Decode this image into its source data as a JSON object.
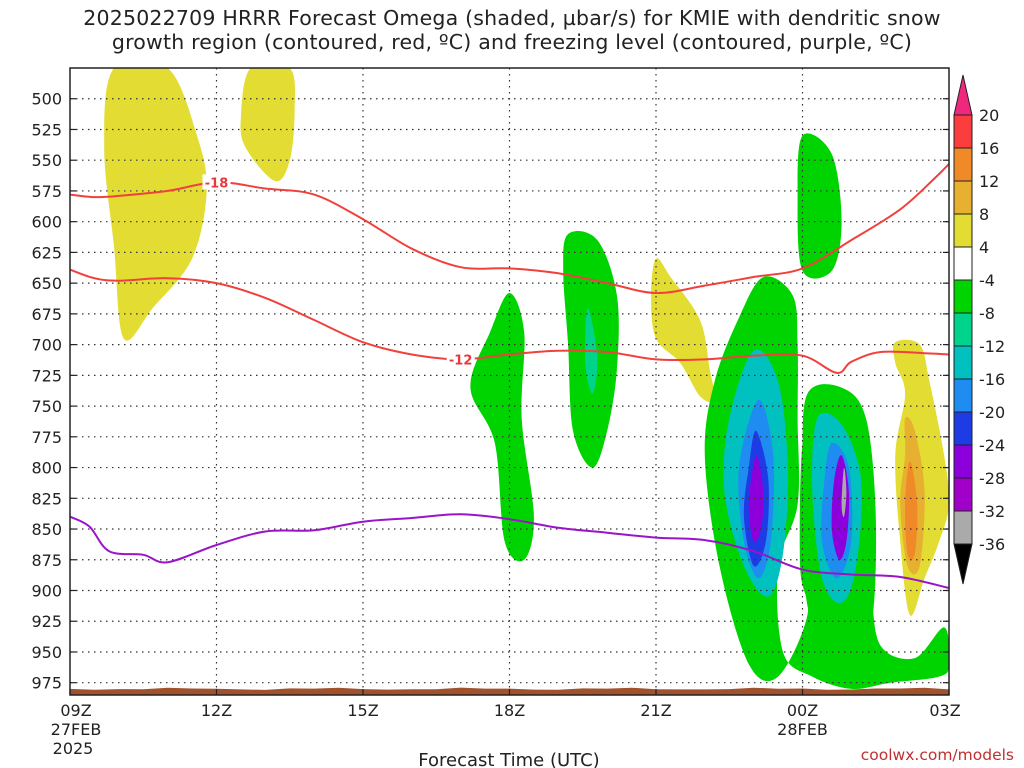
{
  "title": {
    "line1": "2025022709 HRRR Forecast Omega (shaded, µbar/s) for KMIE with dendritic snow",
    "line2": "growth region (contoured, red, ºC) and freezing level (contoured, purple, ºC)"
  },
  "credit": "coolwx.com/models",
  "chart_data": {
    "type": "contour",
    "xlabel": "Forecast Time (UTC)",
    "x_ticks": [
      {
        "hour": 0,
        "label": "09Z",
        "sub1": "27FEB",
        "sub2": "2025"
      },
      {
        "hour": 3,
        "label": "12Z"
      },
      {
        "hour": 6,
        "label": "15Z"
      },
      {
        "hour": 9,
        "label": "18Z"
      },
      {
        "hour": 12,
        "label": "21Z"
      },
      {
        "hour": 15,
        "label": "00Z",
        "sub1": "28FEB"
      },
      {
        "hour": 18,
        "label": "03Z"
      }
    ],
    "xlim": [
      0,
      18
    ],
    "y_ticks": [
      500,
      525,
      550,
      575,
      600,
      625,
      650,
      675,
      700,
      725,
      750,
      775,
      800,
      825,
      850,
      875,
      900,
      925,
      950,
      975
    ],
    "ylim_hpa": [
      475,
      985
    ],
    "colorbar": {
      "top_label": "20",
      "levels": [
        {
          "label": "16",
          "color": "#fc3d3d"
        },
        {
          "label": "12",
          "color": "#f08a28"
        },
        {
          "label": "8",
          "color": "#e7b030"
        },
        {
          "label": "4",
          "color": "#e3dc32"
        },
        {
          "label": "-4",
          "color": "#ffffff"
        },
        {
          "label": "-8",
          "color": "#00d400"
        },
        {
          "label": "-12",
          "color": "#00d38c"
        },
        {
          "label": "-16",
          "color": "#00c0c0"
        },
        {
          "label": "-20",
          "color": "#1e8cf0"
        },
        {
          "label": "-24",
          "color": "#1e3ce6"
        },
        {
          "label": "-28",
          "color": "#8c00dc"
        },
        {
          "label": "-32",
          "color": "#a000c8"
        },
        {
          "label": "-36",
          "color": "#aaaaaa"
        }
      ],
      "top_color": "#f0287d",
      "bottom_color": "#000000"
    },
    "omega_regions": [
      {
        "name": "upward-motion-west",
        "color": "#e3dc32",
        "points": [
          [
            0.9,
            475
          ],
          [
            2.0,
            475
          ],
          [
            2.6,
            530
          ],
          [
            2.8,
            575
          ],
          [
            2.5,
            630
          ],
          [
            1.7,
            670
          ],
          [
            1.1,
            695
          ],
          [
            0.9,
            620
          ],
          [
            0.7,
            540
          ]
        ]
      },
      {
        "name": "upward-motion-upper",
        "color": "#e3dc32",
        "points": [
          [
            3.7,
            475
          ],
          [
            4.5,
            475
          ],
          [
            4.6,
            510
          ],
          [
            4.5,
            550
          ],
          [
            4.2,
            567
          ],
          [
            3.6,
            540
          ],
          [
            3.5,
            515
          ]
        ]
      },
      {
        "name": "descent-18z",
        "color": "#00d400",
        "points": [
          [
            9.0,
            658
          ],
          [
            9.3,
            690
          ],
          [
            9.25,
            760
          ],
          [
            9.5,
            840
          ],
          [
            9.3,
            875
          ],
          [
            8.9,
            860
          ],
          [
            8.7,
            780
          ],
          [
            8.2,
            735
          ],
          [
            8.6,
            690
          ]
        ]
      },
      {
        "name": "descent-20z",
        "color": "#00d400",
        "points": [
          [
            10.2,
            610
          ],
          [
            10.8,
            615
          ],
          [
            11.2,
            660
          ],
          [
            11.2,
            720
          ],
          [
            11.0,
            770
          ],
          [
            10.7,
            800
          ],
          [
            10.3,
            770
          ],
          [
            10.2,
            700
          ],
          [
            10.1,
            640
          ]
        ]
      },
      {
        "name": "descent-20z-inner",
        "color": "#00d38c",
        "points": [
          [
            10.6,
            670
          ],
          [
            10.8,
            710
          ],
          [
            10.7,
            740
          ],
          [
            10.55,
            715
          ]
        ]
      },
      {
        "name": "upward-21z",
        "color": "#e3dc32",
        "points": [
          [
            12.0,
            630
          ],
          [
            12.3,
            645
          ],
          [
            12.9,
            680
          ],
          [
            13.1,
            720
          ],
          [
            13.2,
            745
          ],
          [
            12.9,
            742
          ],
          [
            12.5,
            715
          ],
          [
            12.0,
            695
          ],
          [
            11.9,
            660
          ]
        ]
      },
      {
        "name": "descent-23z-outer",
        "color": "#00d400",
        "points": [
          [
            13.7,
            678
          ],
          [
            14.2,
            645
          ],
          [
            14.8,
            660
          ],
          [
            14.9,
            700
          ],
          [
            14.9,
            760
          ],
          [
            14.9,
            830
          ],
          [
            14.5,
            880
          ],
          [
            14.6,
            950
          ],
          [
            15.2,
            970
          ],
          [
            16.0,
            980
          ],
          [
            16.8,
            975
          ],
          [
            17.8,
            970
          ],
          [
            18.0,
            960
          ],
          [
            17.9,
            930
          ],
          [
            17.3,
            955
          ],
          [
            16.6,
            945
          ],
          [
            16.4,
            900
          ],
          [
            16.2,
            840
          ],
          [
            16.0,
            770
          ],
          [
            15.3,
            740
          ],
          [
            15.0,
            780
          ],
          [
            14.95,
            880
          ],
          [
            15.1,
            920
          ],
          [
            14.5,
            970
          ],
          [
            13.9,
            960
          ],
          [
            13.3,
            880
          ],
          [
            13.0,
            790
          ],
          [
            13.2,
            730
          ]
        ]
      },
      {
        "name": "descent-23z-mid",
        "color": "#00c0c0",
        "points": [
          [
            14.0,
            705
          ],
          [
            14.5,
            730
          ],
          [
            14.7,
            800
          ],
          [
            14.6,
            870
          ],
          [
            14.3,
            905
          ],
          [
            13.8,
            880
          ],
          [
            13.4,
            820
          ],
          [
            13.5,
            760
          ]
        ]
      },
      {
        "name": "descent-23z-blue",
        "color": "#1e8cf0",
        "points": [
          [
            14.1,
            745
          ],
          [
            14.4,
            790
          ],
          [
            14.35,
            860
          ],
          [
            14.1,
            890
          ],
          [
            13.8,
            860
          ],
          [
            13.7,
            800
          ]
        ]
      },
      {
        "name": "descent-23z-dark",
        "color": "#1e3ce6",
        "points": [
          [
            14.05,
            770
          ],
          [
            14.3,
            810
          ],
          [
            14.25,
            860
          ],
          [
            14.0,
            880
          ],
          [
            13.8,
            840
          ],
          [
            13.9,
            800
          ]
        ]
      },
      {
        "name": "descent-23z-core",
        "color": "#8c00dc",
        "points": [
          [
            14.05,
            790
          ],
          [
            14.2,
            820
          ],
          [
            14.15,
            850
          ],
          [
            14.0,
            860
          ],
          [
            13.9,
            830
          ]
        ]
      },
      {
        "name": "descent-01z-outer",
        "color": "#00d400",
        "points": [
          [
            15.0,
            530
          ],
          [
            15.6,
            545
          ],
          [
            15.8,
            600
          ],
          [
            15.6,
            640
          ],
          [
            15.0,
            640
          ],
          [
            14.9,
            580
          ]
        ]
      },
      {
        "name": "descent-01z-low",
        "color": "#00d400",
        "points": [
          [
            15.1,
            740
          ],
          [
            15.8,
            735
          ],
          [
            16.3,
            760
          ],
          [
            16.5,
            840
          ],
          [
            16.4,
            930
          ],
          [
            15.9,
            945
          ],
          [
            15.3,
            940
          ],
          [
            15.0,
            880
          ],
          [
            15.0,
            800
          ]
        ]
      },
      {
        "name": "descent-01z-teal",
        "color": "#00c0c0",
        "points": [
          [
            15.3,
            760
          ],
          [
            15.8,
            765
          ],
          [
            16.2,
            810
          ],
          [
            16.1,
            880
          ],
          [
            15.8,
            910
          ],
          [
            15.4,
            890
          ],
          [
            15.2,
            820
          ]
        ]
      },
      {
        "name": "descent-01z-blue",
        "color": "#1e8cf0",
        "points": [
          [
            15.6,
            780
          ],
          [
            15.95,
            800
          ],
          [
            16.0,
            860
          ],
          [
            15.7,
            890
          ],
          [
            15.4,
            860
          ],
          [
            15.45,
            810
          ]
        ]
      },
      {
        "name": "descent-01z-purple",
        "color": "#8c00dc",
        "points": [
          [
            15.8,
            790
          ],
          [
            15.95,
            820
          ],
          [
            15.9,
            860
          ],
          [
            15.75,
            875
          ],
          [
            15.6,
            850
          ],
          [
            15.65,
            810
          ]
        ]
      },
      {
        "name": "descent-01z-grey",
        "color": "#aaaaaa",
        "points": [
          [
            15.85,
            800
          ],
          [
            15.9,
            820
          ],
          [
            15.85,
            840
          ],
          [
            15.8,
            830
          ]
        ]
      },
      {
        "name": "upward-02z-outer",
        "color": "#e3dc32",
        "points": [
          [
            16.9,
            698
          ],
          [
            17.4,
            700
          ],
          [
            17.6,
            730
          ],
          [
            17.9,
            790
          ],
          [
            18.0,
            830
          ],
          [
            17.8,
            860
          ],
          [
            17.5,
            890
          ],
          [
            17.2,
            920
          ],
          [
            17.0,
            860
          ],
          [
            16.9,
            790
          ],
          [
            17.1,
            740
          ],
          [
            16.9,
            715
          ]
        ]
      },
      {
        "name": "upward-02z-orange",
        "color": "#e7b030",
        "points": [
          [
            17.1,
            760
          ],
          [
            17.3,
            770
          ],
          [
            17.5,
            820
          ],
          [
            17.4,
            880
          ],
          [
            17.15,
            880
          ],
          [
            17.0,
            830
          ],
          [
            17.1,
            790
          ]
        ]
      },
      {
        "name": "upward-02z-red",
        "color": "#f08a28",
        "points": [
          [
            17.2,
            795
          ],
          [
            17.35,
            830
          ],
          [
            17.3,
            870
          ],
          [
            17.15,
            870
          ],
          [
            17.1,
            830
          ]
        ]
      }
    ],
    "dendritic_top_-18": [
      [
        0,
        578
      ],
      [
        0.5,
        580
      ],
      [
        1.0,
        579
      ],
      [
        2.0,
        575
      ],
      [
        3.0,
        568
      ],
      [
        4.0,
        573
      ],
      [
        5.0,
        578
      ],
      [
        6.0,
        598
      ],
      [
        7.0,
        622
      ],
      [
        8.0,
        637
      ],
      [
        9.0,
        638
      ],
      [
        10.0,
        642
      ],
      [
        11.0,
        650
      ],
      [
        12.0,
        658
      ],
      [
        13.0,
        652
      ],
      [
        14.0,
        645
      ],
      [
        15.0,
        638
      ],
      [
        16.0,
        615
      ],
      [
        17.0,
        590
      ],
      [
        17.7,
        565
      ],
      [
        18.0,
        553
      ]
    ],
    "dendritic_bottom_-12": [
      [
        0,
        639
      ],
      [
        0.5,
        646
      ],
      [
        1.0,
        648
      ],
      [
        2.0,
        646
      ],
      [
        3.0,
        650
      ],
      [
        4.0,
        662
      ],
      [
        5.0,
        680
      ],
      [
        6.0,
        698
      ],
      [
        7.0,
        708
      ],
      [
        8.0,
        712
      ],
      [
        9.0,
        708
      ],
      [
        10.0,
        705
      ],
      [
        11.0,
        706
      ],
      [
        12.0,
        712
      ],
      [
        13.0,
        712
      ],
      [
        14.0,
        709
      ],
      [
        15.0,
        709
      ],
      [
        15.7,
        723
      ],
      [
        16.0,
        714
      ],
      [
        16.6,
        706
      ],
      [
        17.5,
        707
      ],
      [
        18.0,
        708
      ]
    ],
    "freezing_level": [
      [
        0,
        840
      ],
      [
        0.4,
        848
      ],
      [
        0.8,
        868
      ],
      [
        1.5,
        871
      ],
      [
        2.0,
        877
      ],
      [
        3.0,
        863
      ],
      [
        4.0,
        852
      ],
      [
        5.0,
        851
      ],
      [
        6.0,
        844
      ],
      [
        7.0,
        841
      ],
      [
        8.0,
        838
      ],
      [
        9.0,
        842
      ],
      [
        10.0,
        849
      ],
      [
        11.0,
        853
      ],
      [
        12.0,
        857
      ],
      [
        13.0,
        859
      ],
      [
        14.0,
        868
      ],
      [
        15.0,
        883
      ],
      [
        16.0,
        887
      ],
      [
        17.0,
        889
      ],
      [
        18.0,
        898
      ]
    ],
    "contour_labels": [
      {
        "text": "-18",
        "hour": 3.0,
        "hpa": 568
      },
      {
        "text": "-12",
        "hour": 8.0,
        "hpa": 712
      }
    ],
    "terrain_hpa": 980,
    "dots_grid": true
  }
}
